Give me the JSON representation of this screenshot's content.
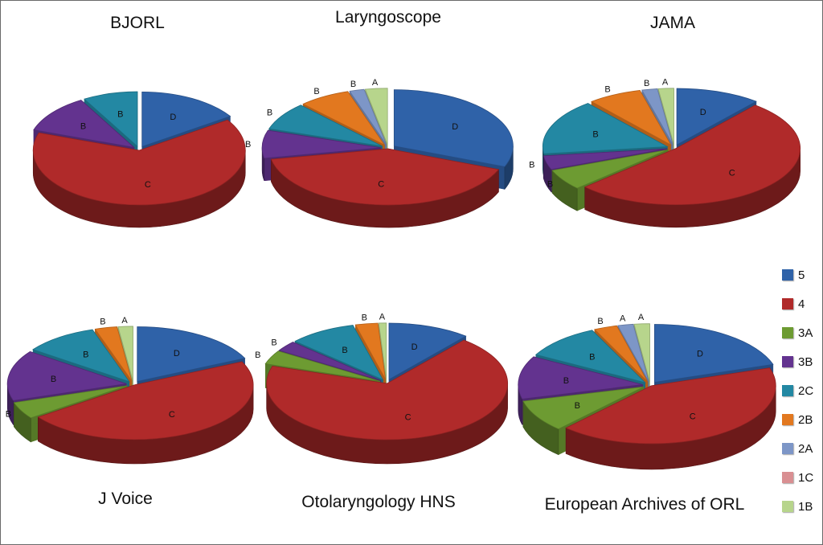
{
  "chart_data": {
    "type": "pie",
    "legend": {
      "position": "right",
      "items": [
        {
          "key": "5",
          "label": "5",
          "color": "#2f62a8"
        },
        {
          "key": "4",
          "label": "4",
          "color": "#b02a2a"
        },
        {
          "key": "3A",
          "label": "3A",
          "color": "#6d9b32"
        },
        {
          "key": "3B",
          "label": "3B",
          "color": "#63338f"
        },
        {
          "key": "2C",
          "label": "2C",
          "color": "#2388a3"
        },
        {
          "key": "2B",
          "label": "2B",
          "color": "#e2781f"
        },
        {
          "key": "2A",
          "label": "2A",
          "color": "#7d96c7"
        },
        {
          "key": "1C",
          "label": "1C",
          "color": "#d98f92"
        },
        {
          "key": "1B",
          "label": "1B",
          "color": "#b7d58c"
        }
      ]
    },
    "pies": [
      {
        "title": "BJORL",
        "slices": [
          {
            "category": "5",
            "value": 15,
            "label": "D"
          },
          {
            "category": "4",
            "value": 62,
            "label": "C"
          },
          {
            "category": "3B",
            "value": 11,
            "label": "B"
          },
          {
            "category": "2C",
            "value": 8,
            "label": "B"
          }
        ]
      },
      {
        "title": "Laryngoscope",
        "slices": [
          {
            "category": "5",
            "value": 31,
            "label": "D"
          },
          {
            "category": "4",
            "value": 41,
            "label": "C"
          },
          {
            "category": "3B",
            "value": 8,
            "label": "B"
          },
          {
            "category": "2C",
            "value": 8,
            "label": "B"
          },
          {
            "category": "2B",
            "value": 7,
            "label": "B"
          },
          {
            "category": "2A",
            "value": 2,
            "label": "B"
          },
          {
            "category": "1B",
            "value": 3,
            "label": "A"
          }
        ]
      },
      {
        "title": "JAMA",
        "slices": [
          {
            "category": "5",
            "value": 11,
            "label": "D"
          },
          {
            "category": "4",
            "value": 52,
            "label": "C"
          },
          {
            "category": "3A",
            "value": 6,
            "label": "B"
          },
          {
            "category": "3B",
            "value": 4,
            "label": "B"
          },
          {
            "category": "2C",
            "value": 16,
            "label": "B"
          },
          {
            "category": "2B",
            "value": 7,
            "label": "B"
          },
          {
            "category": "2A",
            "value": 2,
            "label": "B"
          },
          {
            "category": "1B",
            "value": 2,
            "label": "A"
          }
        ]
      },
      {
        "title": "J Voice",
        "slices": [
          {
            "category": "5",
            "value": 18,
            "label": "D"
          },
          {
            "category": "4",
            "value": 47,
            "label": "C"
          },
          {
            "category": "3A",
            "value": 5,
            "label": "B"
          },
          {
            "category": "3B",
            "value": 15,
            "label": "B"
          },
          {
            "category": "2C",
            "value": 10,
            "label": "B"
          },
          {
            "category": "2B",
            "value": 3,
            "label": "B"
          },
          {
            "category": "1B",
            "value": 2,
            "label": "A"
          }
        ]
      },
      {
        "title": "Otolaryngology HNS",
        "slices": [
          {
            "category": "5",
            "value": 11,
            "label": "D"
          },
          {
            "category": "4",
            "value": 69,
            "label": "C"
          },
          {
            "category": "3A",
            "value": 4,
            "label": "B"
          },
          {
            "category": "3B",
            "value": 3,
            "label": "B"
          },
          {
            "category": "2C",
            "value": 9,
            "label": "B"
          },
          {
            "category": "2B",
            "value": 3,
            "label": "B"
          },
          {
            "category": "1B",
            "value": 1,
            "label": "A"
          }
        ]
      },
      {
        "title": "European Archives of ORL",
        "slices": [
          {
            "category": "5",
            "value": 20,
            "label": "D"
          },
          {
            "category": "4",
            "value": 42,
            "label": "C"
          },
          {
            "category": "3A",
            "value": 9,
            "label": "B"
          },
          {
            "category": "3B",
            "value": 12,
            "label": "B"
          },
          {
            "category": "2C",
            "value": 10,
            "label": "B"
          },
          {
            "category": "2B",
            "value": 3,
            "label": "B"
          },
          {
            "category": "2A",
            "value": 2,
            "label": "A"
          },
          {
            "category": "1B",
            "value": 2,
            "label": "A"
          }
        ]
      }
    ]
  }
}
